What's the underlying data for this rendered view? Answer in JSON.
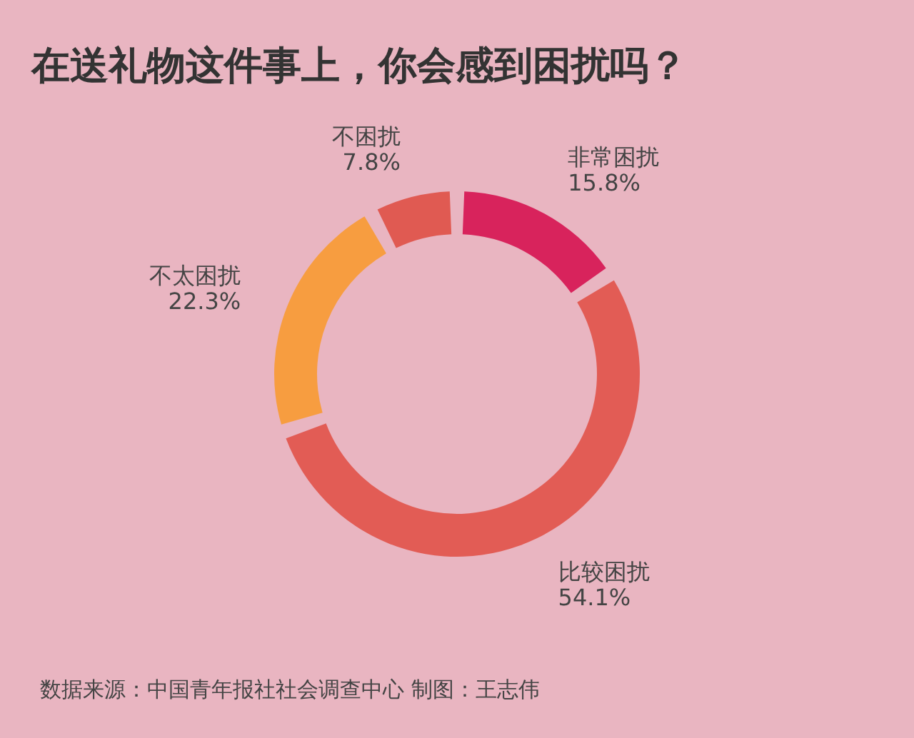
{
  "chart_data": {
    "type": "donut",
    "title": "在送礼物这件事上，你会感到困扰吗？",
    "categories": [
      "非常困扰",
      "比较困扰",
      "不太困扰",
      "不困扰"
    ],
    "values": [
      15.8,
      54.1,
      22.3,
      7.8
    ],
    "colors": [
      "#d8235c",
      "#e25c55",
      "#f79d40",
      "#e05a52"
    ],
    "value_labels": [
      "15.8%",
      "54.1%",
      "22.3%",
      "7.8%"
    ],
    "annotations": [
      "数据来源：中国青年报社社会调查中心 制图：王志伟"
    ]
  }
}
